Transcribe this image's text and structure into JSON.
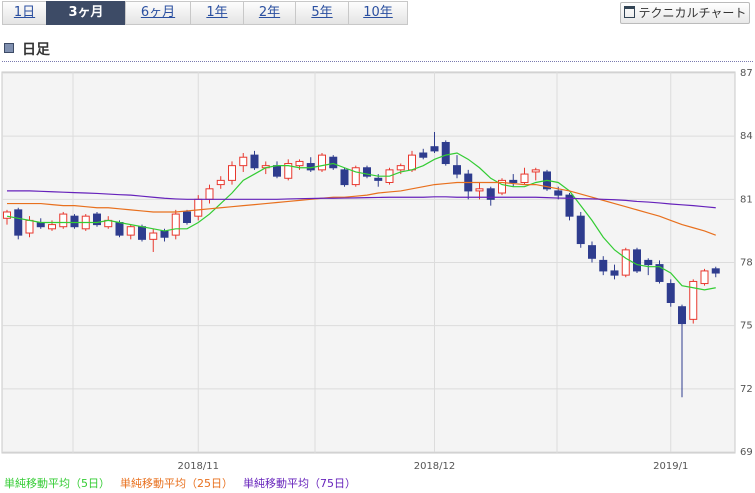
{
  "tabs": [
    "1日",
    "3ヶ月",
    "6ヶ月",
    "1年",
    "2年",
    "5年",
    "10年"
  ],
  "selected_tab": 1,
  "button": "テクニカルチャート",
  "heading": "日足",
  "chart_data": {
    "type": "candlestick",
    "categories": [
      null,
      null,
      null,
      null,
      null,
      null,
      null,
      null,
      null,
      null,
      null,
      null,
      null,
      null,
      null,
      null,
      null,
      "2018/11",
      null,
      null,
      null,
      null,
      null,
      null,
      null,
      null,
      null,
      null,
      null,
      null,
      null,
      null,
      null,
      null,
      null,
      null,
      null,
      null,
      "2018/12",
      null,
      null,
      null,
      null,
      null,
      null,
      null,
      null,
      null,
      null,
      null,
      null,
      null,
      null,
      null,
      null,
      null,
      null,
      null,
      null,
      "2019/1",
      null,
      null,
      null,
      null
    ],
    "open": [
      80.1,
      80.5,
      79.4,
      79.9,
      79.6,
      79.7,
      80.2,
      79.6,
      80.3,
      79.7,
      79.9,
      79.3,
      79.7,
      79.1,
      79.5,
      79.3,
      80.4,
      80.2,
      81.0,
      81.7,
      81.9,
      82.6,
      83.1,
      82.5,
      82.6,
      82.0,
      82.6,
      82.7,
      82.4,
      83.0,
      82.4,
      81.7,
      82.5,
      82.0,
      81.8,
      82.4,
      82.4,
      83.2,
      83.5,
      83.7,
      82.6,
      82.2,
      81.4,
      81.5,
      81.3,
      81.9,
      81.8,
      82.3,
      82.3,
      81.4,
      81.2,
      80.2,
      78.8,
      78.1,
      77.6,
      77.4,
      78.6,
      78.1,
      77.9,
      77.0,
      75.9,
      75.3,
      77.0,
      77.7
    ],
    "high": [
      80.5,
      80.6,
      80.2,
      80.1,
      80.0,
      80.4,
      80.3,
      80.3,
      80.4,
      80.2,
      80.0,
      79.8,
      79.8,
      79.6,
      79.6,
      80.5,
      80.5,
      81.2,
      81.7,
      82.1,
      82.8,
      83.2,
      83.3,
      82.8,
      82.8,
      82.9,
      82.9,
      83.0,
      83.2,
      83.1,
      82.5,
      82.6,
      82.6,
      82.2,
      82.5,
      82.7,
      83.3,
      83.4,
      84.2,
      83.8,
      83.1,
      82.4,
      81.8,
      81.6,
      82.0,
      82.2,
      82.5,
      82.5,
      82.4,
      81.6,
      81.3,
      80.4,
      79.0,
      78.3,
      77.9,
      78.7,
      78.7,
      78.2,
      78.1,
      77.2,
      76.0,
      77.2,
      77.7,
      77.8
    ],
    "low": [
      79.8,
      79.1,
      79.2,
      79.6,
      79.5,
      79.6,
      79.6,
      79.5,
      79.7,
      79.6,
      79.2,
      79.1,
      79.0,
      78.5,
      79.0,
      79.1,
      79.8,
      80.0,
      80.8,
      81.5,
      81.7,
      82.3,
      82.4,
      82.2,
      82.0,
      81.9,
      82.4,
      82.3,
      82.3,
      82.4,
      81.6,
      81.6,
      82.0,
      81.6,
      81.7,
      82.2,
      82.3,
      82.9,
      83.2,
      82.6,
      82.0,
      81.0,
      81.0,
      80.7,
      81.2,
      81.6,
      81.7,
      81.9,
      81.4,
      81.0,
      80.0,
      78.7,
      78.0,
      77.4,
      77.2,
      77.3,
      77.5,
      77.4,
      77.0,
      75.9,
      71.6,
      75.1,
      76.9,
      77.3
    ],
    "close": [
      80.4,
      79.3,
      80.0,
      79.7,
      79.8,
      80.3,
      79.7,
      80.2,
      79.8,
      80.0,
      79.3,
      79.7,
      79.1,
      79.4,
      79.2,
      80.3,
      79.9,
      81.0,
      81.5,
      81.9,
      82.6,
      83.0,
      82.5,
      82.6,
      82.1,
      82.7,
      82.8,
      82.4,
      83.1,
      82.5,
      81.7,
      82.5,
      82.1,
      81.9,
      82.4,
      82.6,
      83.1,
      83.0,
      83.3,
      82.7,
      82.2,
      81.4,
      81.5,
      81.0,
      81.9,
      81.8,
      82.2,
      82.4,
      81.5,
      81.2,
      80.2,
      78.9,
      78.2,
      77.6,
      77.4,
      78.6,
      77.6,
      77.9,
      77.1,
      76.1,
      75.1,
      77.1,
      77.6,
      77.5
    ],
    "up_color": "#e8382e",
    "down_color": "#2e3c8e",
    "series": [
      {
        "name": "単純移動平均（5日）",
        "color": "#33cc33",
        "values": [
          80.2,
          80.1,
          80.0,
          79.9,
          79.9,
          79.9,
          79.9,
          79.9,
          79.9,
          80.0,
          79.9,
          79.8,
          79.7,
          79.6,
          79.5,
          79.6,
          79.6,
          79.9,
          80.3,
          80.8,
          81.3,
          81.9,
          82.2,
          82.5,
          82.6,
          82.6,
          82.5,
          82.5,
          82.6,
          82.7,
          82.5,
          82.3,
          82.2,
          82.1,
          82.1,
          82.3,
          82.4,
          82.6,
          82.9,
          83.1,
          83.2,
          82.9,
          82.5,
          82.0,
          81.7,
          81.6,
          81.6,
          81.8,
          81.9,
          81.8,
          81.4,
          80.7,
          80.0,
          79.2,
          78.6,
          78.2,
          77.9,
          77.8,
          77.8,
          77.5,
          76.9,
          76.8,
          76.7,
          76.8
        ]
      },
      {
        "name": "単純移動平均（25日）",
        "color": "#e8701e",
        "values": [
          80.8,
          80.8,
          80.8,
          80.8,
          80.75,
          80.7,
          80.7,
          80.65,
          80.6,
          80.6,
          80.55,
          80.5,
          80.45,
          80.4,
          80.4,
          80.4,
          80.45,
          80.5,
          80.55,
          80.6,
          80.65,
          80.7,
          80.75,
          80.8,
          80.85,
          80.9,
          80.95,
          81.0,
          81.05,
          81.1,
          81.1,
          81.15,
          81.2,
          81.3,
          81.35,
          81.4,
          81.5,
          81.6,
          81.7,
          81.75,
          81.8,
          81.8,
          81.8,
          81.8,
          81.8,
          81.75,
          81.7,
          81.7,
          81.6,
          81.5,
          81.4,
          81.25,
          81.1,
          80.95,
          80.8,
          80.65,
          80.5,
          80.35,
          80.2,
          80.0,
          79.8,
          79.65,
          79.5,
          79.3
        ]
      },
      {
        "name": "単純移動平均（75日）",
        "color": "#6622bb",
        "values": [
          81.4,
          81.4,
          81.4,
          81.38,
          81.36,
          81.34,
          81.32,
          81.3,
          81.28,
          81.25,
          81.22,
          81.2,
          81.15,
          81.1,
          81.05,
          81.02,
          81.0,
          81.0,
          81.0,
          81.0,
          81.0,
          81.0,
          81.0,
          81.0,
          81.0,
          81.02,
          81.03,
          81.04,
          81.05,
          81.05,
          81.06,
          81.07,
          81.08,
          81.09,
          81.1,
          81.1,
          81.1,
          81.1,
          81.12,
          81.12,
          81.1,
          81.1,
          81.1,
          81.1,
          81.1,
          81.1,
          81.1,
          81.1,
          81.08,
          81.06,
          81.05,
          81.03,
          81.02,
          81.0,
          80.98,
          80.95,
          80.9,
          80.87,
          80.83,
          80.78,
          80.74,
          80.7,
          80.65,
          80.6
        ]
      }
    ],
    "ylim": [
      69,
      87
    ],
    "yticks": [
      69,
      72,
      75,
      78,
      81,
      84,
      87
    ],
    "grid": true
  }
}
